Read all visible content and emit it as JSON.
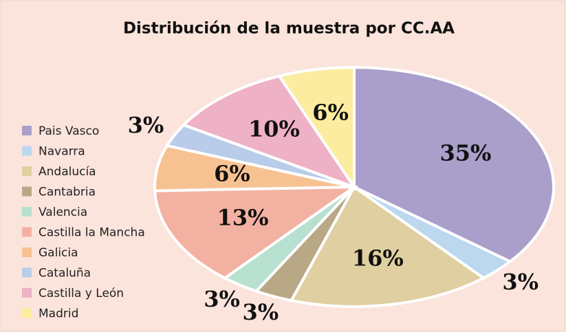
{
  "chart_data": {
    "type": "pie",
    "title": "Distribución de la muestra por CC.AA",
    "categories": [
      "Pais Vasco",
      "Navarra",
      "Andalucía",
      "Cantabria",
      "Valencia",
      "Castilla la Mancha",
      "Galicia",
      "Cataluña",
      "Castilla y León",
      "Madrid"
    ],
    "values": [
      35,
      3,
      16,
      3,
      3,
      13,
      6,
      3,
      10,
      6
    ],
    "value_labels": [
      "35%",
      "3%",
      "16%",
      "3%",
      "3%",
      "13%",
      "6%",
      "3%",
      "10%",
      "6%"
    ],
    "colors": [
      "#a99fca",
      "#bcd8ef",
      "#e0cfa0",
      "#b9a886",
      "#b8e0d0",
      "#f3b1a1",
      "#f7c292",
      "#b9cce9",
      "#efb1c5",
      "#fcec9f"
    ],
    "legend": "left"
  }
}
